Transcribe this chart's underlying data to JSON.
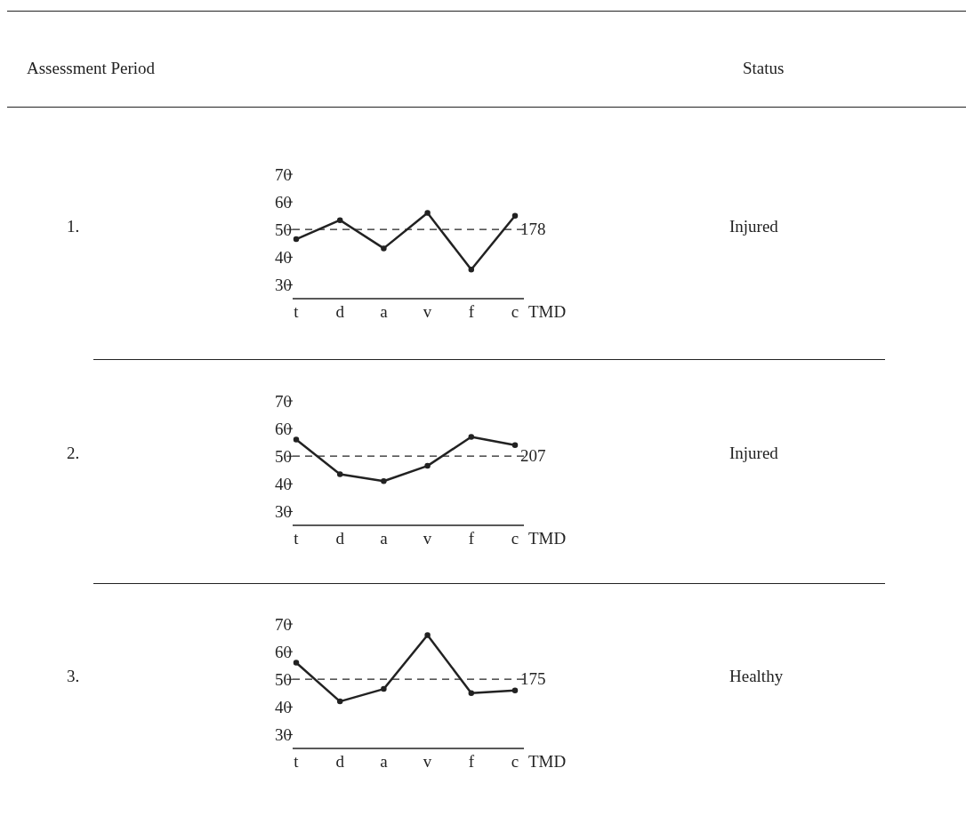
{
  "chart_data": [
    {
      "type": "line",
      "categories": [
        "t",
        "d",
        "a",
        "v",
        "f",
        "c"
      ],
      "xlabel": "TMD",
      "series": [
        {
          "color": "#222222",
          "values": [
            46.5,
            53.4,
            43.2,
            56,
            35.5,
            55
          ]
        }
      ],
      "ylim": [
        25,
        70
      ],
      "yticks": [
        30,
        40,
        50,
        60,
        70
      ],
      "grid": false,
      "legend": false,
      "marker": "circle",
      "line_style": "solid",
      "ref_lines": [
        {
          "axis": "y",
          "value": 50,
          "line_style": "dashed",
          "color": "#222222"
        }
      ],
      "annotations": [
        "Assessment Period",
        "Status",
        "1.",
        "Injured",
        "178"
      ]
    },
    {
      "type": "line",
      "categories": [
        "t",
        "d",
        "a",
        "v",
        "f",
        "c"
      ],
      "xlabel": "TMD",
      "series": [
        {
          "color": "#222222",
          "values": [
            56,
            43.5,
            41,
            46.5,
            57,
            54
          ]
        }
      ],
      "ylim": [
        25,
        70
      ],
      "yticks": [
        30,
        40,
        50,
        60,
        70
      ],
      "grid": false,
      "legend": false,
      "marker": "circle",
      "line_style": "solid",
      "ref_lines": [
        {
          "axis": "y",
          "value": 50,
          "line_style": "dashed",
          "color": "#222222"
        }
      ],
      "annotations": [
        "2.",
        "Injured",
        "207"
      ]
    },
    {
      "type": "line",
      "categories": [
        "t",
        "d",
        "a",
        "v",
        "f",
        "c"
      ],
      "xlabel": "TMD",
      "series": [
        {
          "color": "#222222",
          "values": [
            56,
            42,
            46.5,
            66,
            45,
            46
          ]
        }
      ],
      "ylim": [
        25,
        70
      ],
      "yticks": [
        30,
        40,
        50,
        60,
        70
      ],
      "grid": false,
      "legend": false,
      "marker": "circle",
      "line_style": "solid",
      "ref_lines": [
        {
          "axis": "y",
          "value": 50,
          "line_style": "dashed",
          "color": "#222222"
        }
      ],
      "annotations": [
        "3.",
        "Healthy",
        "175"
      ]
    }
  ]
}
